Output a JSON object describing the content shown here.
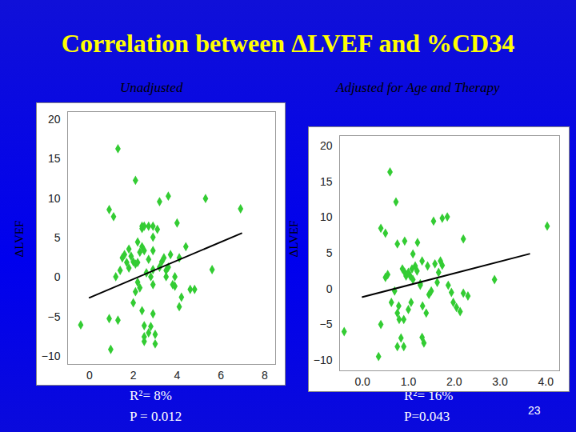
{
  "title": "Correlation between ΔLVEF and %CD34",
  "slide_number": 23,
  "chart_data": [
    {
      "type": "scatter",
      "title": "Unadjusted",
      "y_label": "ΔLVEF",
      "marker": "diamond",
      "color": "#33cc33",
      "annotations": [
        "R²= 8%",
        "P = 0.012"
      ],
      "xlim": [
        -1,
        8.5
      ],
      "ylim": [
        -11,
        21
      ],
      "xticks": [
        0,
        2,
        4,
        6,
        8
      ],
      "yticks": [
        -10,
        -5,
        0,
        5,
        10,
        15,
        20
      ],
      "x": [
        -0.4,
        0.97,
        0.9,
        1.3,
        0.9,
        1.1,
        2.1,
        1.3,
        1.2,
        1.4,
        1.5,
        1.6,
        1.7,
        1.8,
        1.8,
        1.9,
        2.0,
        2.1,
        2.2,
        2.2,
        2.3,
        2.4,
        2.4,
        2.5,
        2.7,
        2.9,
        2.0,
        2.1,
        2.2,
        2.3,
        2.4,
        2.5,
        2.5,
        2.5,
        2.7,
        2.8,
        2.9,
        3.0,
        3.0,
        2.4,
        2.5,
        2.6,
        2.7,
        2.8,
        2.9,
        2.9,
        2.9,
        3.1,
        3.2,
        3.3,
        3.4,
        3.5,
        3.5,
        3.6,
        3.6,
        3.7,
        3.8,
        3.9,
        3.9,
        4.0,
        4.1,
        4.1,
        4.2,
        4.4,
        4.6,
        4.8,
        5.3,
        5.6,
        6.9,
        3.2,
        2.9
      ],
      "values": [
        -6.0,
        -9.1,
        -5.2,
        16.3,
        8.6,
        7.7,
        12.3,
        -5.4,
        0.1,
        0.9,
        2.5,
        2.9,
        1.9,
        1.2,
        3.6,
        2.7,
        2.0,
        1.7,
        1.9,
        4.5,
        3.2,
        6.2,
        6.5,
        6.5,
        6.5,
        6.5,
        -3.2,
        -1.8,
        -0.6,
        -1.3,
        -4.2,
        -6.1,
        -7.5,
        -8.1,
        -7.0,
        -6.2,
        -4.6,
        -7.2,
        -8.4,
        3.9,
        3.4,
        0.6,
        2.3,
        0.1,
        1.0,
        3.4,
        5.1,
        6.1,
        9.6,
        2.0,
        2.5,
        0.9,
        0.1,
        1.3,
        10.3,
        2.9,
        -0.9,
        0.1,
        -1.1,
        6.9,
        2.5,
        -3.7,
        -2.5,
        3.9,
        -1.5,
        -1.5,
        10.0,
        1.0,
        8.7,
        1.3,
        -0.9
      ],
      "fit_line": {
        "x": [
          0,
          6.94
        ],
        "y": [
          -2.55,
          5.6
        ]
      }
    },
    {
      "type": "scatter",
      "title": "Adjusted for Age and  Therapy",
      "y_label": "ΔLVEF",
      "marker": "diamond",
      "color": "#33cc33",
      "annotations": [
        "R²= 16%",
        "P=0.043"
      ],
      "xlim": [
        -0.5,
        4.3
      ],
      "ylim": [
        -11.5,
        21.5
      ],
      "xticks": [
        0,
        1,
        2,
        3,
        4
      ],
      "yticks": [
        -10,
        -5,
        0,
        5,
        10,
        15,
        20
      ],
      "x": [
        -0.4,
        0.35,
        0.4,
        0.5,
        0.4,
        0.6,
        0.73,
        0.76,
        0.92,
        0.55,
        0.5,
        0.7,
        0.63,
        0.76,
        0.8,
        0.9,
        0.79,
        0.87,
        0.92,
        0.95,
        1.0,
        1.04,
        1.08,
        1.1,
        1.1,
        1.15,
        1.19,
        1.2,
        1.26,
        1.3,
        1.31,
        1.42,
        1.39,
        1.45,
        1.5,
        1.58,
        1.63,
        1.66,
        1.7,
        1.74,
        1.55,
        1.74,
        1.85,
        0.84,
        0.9,
        0.76,
        1.3,
        1.34,
        1.26,
        1.87,
        1.94,
        1.98,
        2.05,
        2.13,
        2.2,
        2.2,
        2.3,
        2.88,
        4.03,
        1.0,
        1.06
      ],
      "values": [
        -6.0,
        -9.5,
        8.5,
        7.8,
        -5.0,
        16.4,
        12.2,
        6.3,
        6.7,
        2.0,
        1.6,
        -0.3,
        -1.9,
        -3.4,
        -4.3,
        -4.3,
        -2.4,
        2.8,
        2.3,
        1.8,
        2.3,
        1.8,
        2.8,
        1.3,
        4.9,
        3.2,
        2.5,
        6.5,
        0.7,
        3.9,
        -2.4,
        3.2,
        -3.4,
        -0.8,
        -0.3,
        3.5,
        0.9,
        2.3,
        3.9,
        3.3,
        9.5,
        9.9,
        10.1,
        -6.9,
        -8.1,
        -8.1,
        -6.8,
        -7.6,
        0.5,
        0.5,
        -0.5,
        -1.9,
        -2.6,
        -3.2,
        7.0,
        -0.6,
        -1.0,
        1.3,
        8.8,
        -2.9,
        -1.9
      ],
      "fit_line": {
        "x": [
          0,
          3.64
        ],
        "y": [
          -1.15,
          4.9
        ]
      }
    }
  ]
}
